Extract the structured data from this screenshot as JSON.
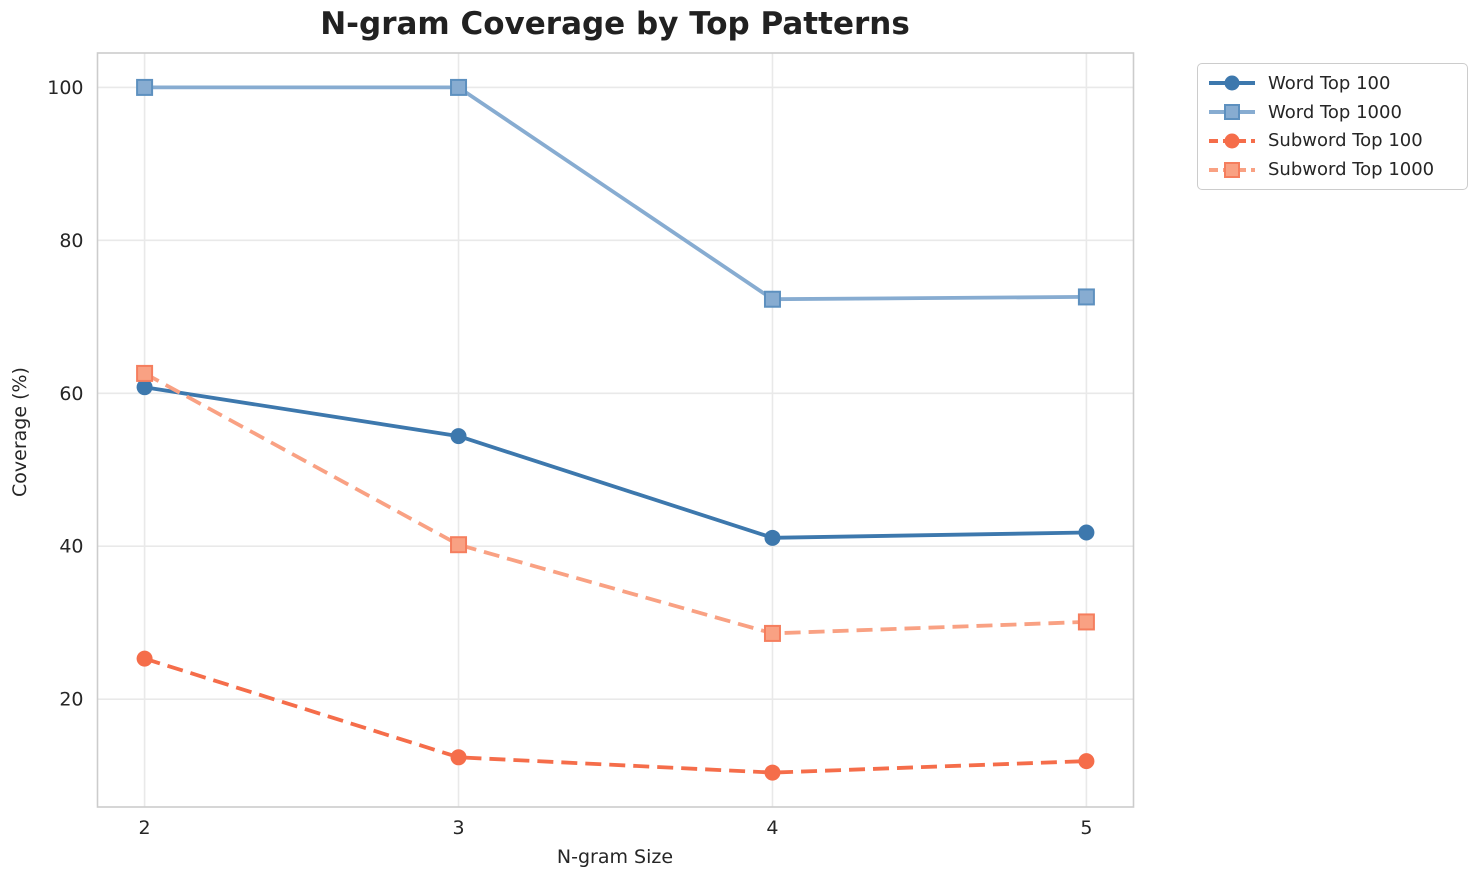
{
  "chart_data": {
    "type": "line",
    "title": "N-gram Coverage by Top Patterns",
    "xlabel": "N-gram Size",
    "ylabel": "Coverage (%)",
    "x": [
      2,
      3,
      4,
      5
    ],
    "xticks": [
      "2",
      "3",
      "4",
      "5"
    ],
    "yticks": [
      20,
      40,
      60,
      80,
      100
    ],
    "xlim": [
      1.85,
      5.15
    ],
    "ylim": [
      5.9,
      104.5
    ],
    "grid": true,
    "legend_location": "upper right, outside axes",
    "series": [
      {
        "name": "Word Top 100",
        "color": "#3d78ad",
        "line_style": "solid",
        "marker": "circle",
        "values": [
          60.8,
          54.4,
          41.1,
          41.8
        ]
      },
      {
        "name": "Word Top 1000",
        "color": "#87acd1",
        "marker_edge": "#5d90bf",
        "line_style": "solid",
        "marker": "square",
        "values": [
          100.0,
          100.0,
          72.3,
          72.6
        ]
      },
      {
        "name": "Subword Top 100",
        "color": "#f56d4a",
        "line_style": "dashed",
        "marker": "circle",
        "values": [
          25.3,
          12.4,
          10.4,
          11.9
        ]
      },
      {
        "name": "Subword Top 1000",
        "color": "#f9a183",
        "marker_edge": "#f57e5e",
        "line_style": "dashed",
        "marker": "square",
        "values": [
          62.6,
          40.2,
          28.6,
          30.1
        ]
      }
    ],
    "colors": {
      "grid": "#e9e9e9",
      "spine": "#cccccc",
      "tick_text": "#262626",
      "title_text": "#212121",
      "background": "#ffffff"
    }
  }
}
